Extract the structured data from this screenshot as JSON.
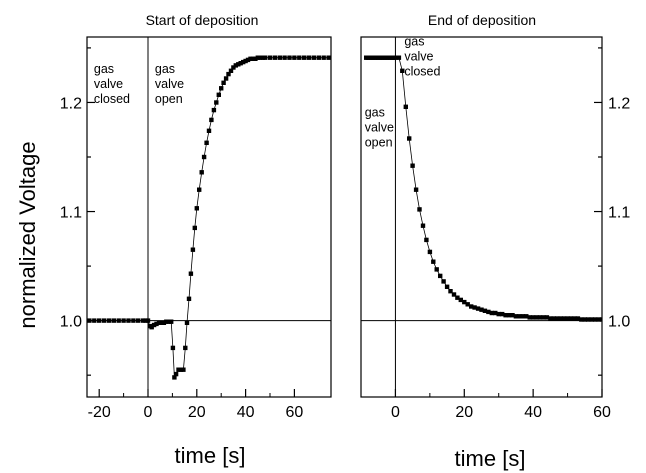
{
  "chart_data": [
    {
      "type": "scatter",
      "title": "Start of deposition",
      "xlabel": "time [s]",
      "ylabel": "normalized Voltage",
      "xlim": [
        -25,
        75
      ],
      "ylim": [
        0.93,
        1.26
      ],
      "x_ticks": [
        -20,
        0,
        20,
        40,
        60
      ],
      "y_ticks": [
        1.0,
        1.1,
        1.2
      ],
      "y_tick_labels": [
        "1.0",
        "1.1",
        "1.2"
      ],
      "reference_lines": {
        "horizontal_y": 1.0,
        "vertical_x": 0
      },
      "annotations": [
        {
          "text": [
            "gas",
            "valve",
            "closed"
          ],
          "x": -23,
          "y": 1.24
        },
        {
          "text": [
            "gas",
            "valve",
            "open"
          ],
          "x": 2,
          "y": 1.24
        }
      ],
      "series": [
        {
          "x": [
            -24,
            -22,
            -20,
            -18,
            -16,
            -14,
            -12,
            -10,
            -8,
            -6,
            -4,
            -2,
            -1,
            0,
            0.8,
            1.5,
            2.5,
            3.5,
            4.5,
            5.5,
            6.5,
            7.5,
            8.5,
            9.5,
            10.2,
            10.8,
            11.5,
            12.5,
            13.5,
            14.5,
            15.3,
            16,
            16.8,
            17.6,
            18.4,
            19.2,
            20,
            21,
            22,
            23,
            24,
            25,
            26,
            27,
            28,
            29,
            30,
            31,
            32,
            33,
            34,
            35,
            36,
            37,
            38,
            39,
            40,
            41,
            42,
            43,
            44,
            45,
            46,
            47,
            48,
            50,
            52,
            54,
            56,
            58,
            60,
            62,
            64,
            66,
            68,
            70,
            72,
            74
          ],
          "y": [
            1.0,
            1.0,
            1.0,
            1.0,
            1.0,
            1.0,
            1.0,
            1.0,
            1.0,
            1.0,
            1.0,
            1.0,
            1.0,
            1.0,
            0.995,
            0.994,
            0.996,
            0.997,
            0.998,
            0.998,
            0.998,
            0.999,
            0.999,
            0.999,
            0.975,
            0.948,
            0.951,
            0.955,
            0.955,
            0.955,
            0.975,
            0.998,
            1.02,
            1.043,
            1.065,
            1.085,
            1.103,
            1.12,
            1.136,
            1.15,
            1.163,
            1.174,
            1.184,
            1.193,
            1.2,
            1.207,
            1.213,
            1.218,
            1.222,
            1.226,
            1.229,
            1.232,
            1.234,
            1.235,
            1.236,
            1.237,
            1.238,
            1.239,
            1.24,
            1.24,
            1.24,
            1.241,
            1.241,
            1.241,
            1.241,
            1.241,
            1.241,
            1.241,
            1.241,
            1.241,
            1.241,
            1.241,
            1.241,
            1.241,
            1.241,
            1.241,
            1.241,
            1.241
          ]
        }
      ]
    },
    {
      "type": "line",
      "title": "End of deposition",
      "xlabel": "time [s]",
      "xlim": [
        -10,
        60
      ],
      "ylim": [
        0.93,
        1.26
      ],
      "x_ticks": [
        0,
        20,
        40,
        60
      ],
      "y_ticks": [
        1.0,
        1.1,
        1.2
      ],
      "y_tick_labels": [
        "1.0",
        "1.1",
        "1.2"
      ],
      "y_axis_side": "right",
      "reference_lines": {
        "horizontal_y": 1.0,
        "vertical_x": 0
      },
      "annotations": [
        {
          "text": [
            "gas",
            "valve",
            "closed"
          ],
          "x": 2,
          "y": 1.265
        },
        {
          "text": [
            "gas",
            "valve",
            "open"
          ],
          "x": -9.5,
          "y": 1.2
        }
      ],
      "series": [
        {
          "x": [
            -8.5,
            -8,
            -7.5,
            -7,
            -6.5,
            -6,
            -5.5,
            -5,
            -4.5,
            -4,
            -3.5,
            -3,
            -2.5,
            -2,
            -1.5,
            -1,
            -0.5,
            0,
            1,
            2,
            3,
            4,
            5,
            6,
            7,
            8,
            9,
            10,
            11,
            12,
            13,
            14,
            15,
            16,
            17,
            18,
            19,
            20,
            21,
            22,
            23,
            24,
            25,
            26,
            27,
            28,
            29,
            30,
            31,
            32,
            33,
            34,
            35,
            36,
            37,
            38,
            39,
            40,
            41,
            42,
            43,
            44,
            45,
            46,
            47,
            48,
            49,
            50,
            51,
            52,
            53,
            54,
            55,
            56,
            57,
            58,
            59,
            60
          ],
          "y": [
            1.241,
            1.241,
            1.241,
            1.241,
            1.241,
            1.241,
            1.241,
            1.241,
            1.241,
            1.241,
            1.241,
            1.241,
            1.241,
            1.241,
            1.241,
            1.241,
            1.241,
            1.241,
            1.241,
            1.229,
            1.196,
            1.167,
            1.142,
            1.12,
            1.102,
            1.087,
            1.074,
            1.063,
            1.054,
            1.047,
            1.041,
            1.036,
            1.031,
            1.027,
            1.024,
            1.021,
            1.019,
            1.017,
            1.015,
            1.013,
            1.012,
            1.011,
            1.01,
            1.009,
            1.008,
            1.007,
            1.007,
            1.006,
            1.006,
            1.005,
            1.005,
            1.005,
            1.004,
            1.004,
            1.004,
            1.004,
            1.003,
            1.003,
            1.003,
            1.003,
            1.003,
            1.003,
            1.002,
            1.002,
            1.002,
            1.002,
            1.002,
            1.002,
            1.002,
            1.002,
            1.002,
            1.001,
            1.001,
            1.001,
            1.001,
            1.001,
            1.001,
            1.001
          ]
        }
      ]
    }
  ]
}
